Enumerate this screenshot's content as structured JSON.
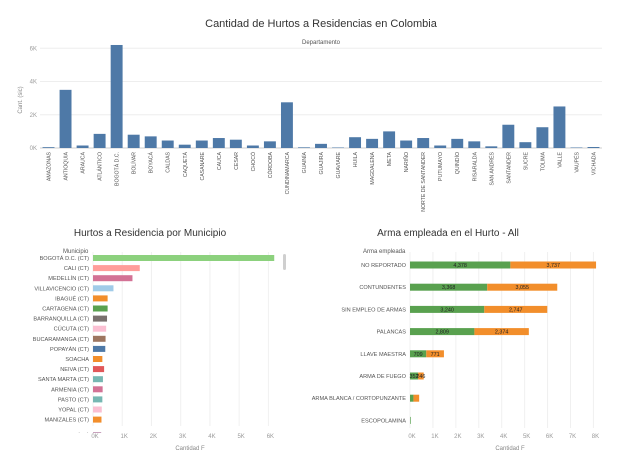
{
  "chart_data": [
    {
      "type": "bar",
      "title": "Cantidad de Hurtos a Residencias en Colombia",
      "subtitle": "Departamento",
      "ylabel": "Cant. (sic)",
      "yticks": [
        "0K",
        "2K",
        "4K",
        "6K"
      ],
      "ylim": [
        0,
        6500
      ],
      "color": "#4e79a7",
      "categories": [
        "AMAZONAS",
        "ANTIOQUIA",
        "ARAUCA",
        "ATLÁNTICO",
        "BOGOTÁ D.C.",
        "BOLÍVAR",
        "BOYACÁ",
        "CALDAS",
        "CAQUETÁ",
        "CASANARE",
        "CAUCA",
        "CESAR",
        "CHOCÓ",
        "CÓRDOBA",
        "CUNDINAMARCA",
        "GUAINÍA",
        "GUAJIRA",
        "GUAVIARE",
        "HUILA",
        "MAGDALENA",
        "META",
        "NARIÑO",
        "NORTE DE SANTANDER",
        "PUTUMAYO",
        "QUINDÍO",
        "RISARALDA",
        "SAN ANDRÉS",
        "SANTANDER",
        "SUCRE",
        "TOLIMA",
        "VALLE",
        "VAUPÉS",
        "VICHADA"
      ],
      "values": [
        50,
        3500,
        150,
        850,
        6200,
        800,
        700,
        450,
        200,
        450,
        600,
        500,
        150,
        400,
        2750,
        40,
        250,
        30,
        650,
        550,
        1000,
        450,
        600,
        150,
        550,
        400,
        100,
        1400,
        350,
        1250,
        2500,
        30,
        60
      ]
    },
    {
      "type": "bar",
      "orientation": "horizontal",
      "title": "Hurtos a Residencia por Municipio",
      "header": "Municipio",
      "xlabel": "Cantidad  F",
      "xticks": [
        "0K",
        "1K",
        "2K",
        "3K",
        "4K",
        "5K",
        "6K"
      ],
      "xlim": [
        0,
        6500
      ],
      "categories": [
        "BOGOTÁ D.C. (CT)",
        "CALI (CT)",
        "MEDELLÍN (CT)",
        "VILLAVICENCIO (CT)",
        "IBAGUÉ (CT)",
        "CARTAGENA (CT)",
        "BARRANQUILLA (CT)",
        "CÚCUTA (CT)",
        "BUCARAMANGA (CT)",
        "POPAYÁN (CT)",
        "SOACHA",
        "NEIVA (CT)",
        "SANTA MARTA (CT)",
        "ARMENIA (CT)",
        "PASTO (CT)",
        "YOPAL (CT)",
        "MANIZALES (CT)",
        "PEREIRA (CT)"
      ],
      "values": [
        6200,
        1600,
        1350,
        700,
        500,
        500,
        480,
        450,
        430,
        420,
        320,
        380,
        340,
        330,
        320,
        300,
        290,
        280
      ],
      "colors": [
        "#8cd17d",
        "#ff9d9a",
        "#d37295",
        "#a0cbe8",
        "#f28e2b",
        "#59a14f",
        "#79706e",
        "#fabfd2",
        "#9d7660",
        "#4e79a7",
        "#f28e2b",
        "#e15759",
        "#76b7b2",
        "#d37295",
        "#76b7b2",
        "#fabfd2",
        "#f28e2b",
        "#b07aa1"
      ]
    },
    {
      "type": "bar",
      "orientation": "horizontal",
      "stacked": true,
      "title": "Arma empleada en el Hurto - All",
      "header": "Arma empleada",
      "xlabel": "Cantidad  F",
      "xticks": [
        "0K",
        "1K",
        "2K",
        "3K",
        "4K",
        "5K",
        "6K",
        "7K",
        "8K"
      ],
      "xlim": [
        0,
        8200
      ],
      "categories": [
        "NO REPORTADO",
        "CONTUNDENTES",
        "SIN EMPLEO DE ARMAS",
        "PALANCAS",
        "LLAVE MAESTRA",
        "ARMA DE FUEGO",
        "ARMA BLANCA / CORTOPUNZANTE",
        "ESCOPOLAMINA"
      ],
      "series": [
        {
          "values": [
            4378,
            3368,
            3240,
            2809,
            709,
            352,
            150,
            30
          ],
          "labels": [
            "4,378",
            "3,368",
            "3,240",
            "2,809",
            "709",
            "352",
            "",
            ""
          ],
          "color": "#59a14f"
        },
        {
          "values": [
            3737,
            3055,
            2747,
            2374,
            771,
            246,
            250,
            0
          ],
          "labels": [
            "3,737",
            "3,055",
            "2,747",
            "2,374",
            "771",
            "246",
            "",
            ""
          ],
          "color": "#f28e2b"
        }
      ]
    }
  ]
}
